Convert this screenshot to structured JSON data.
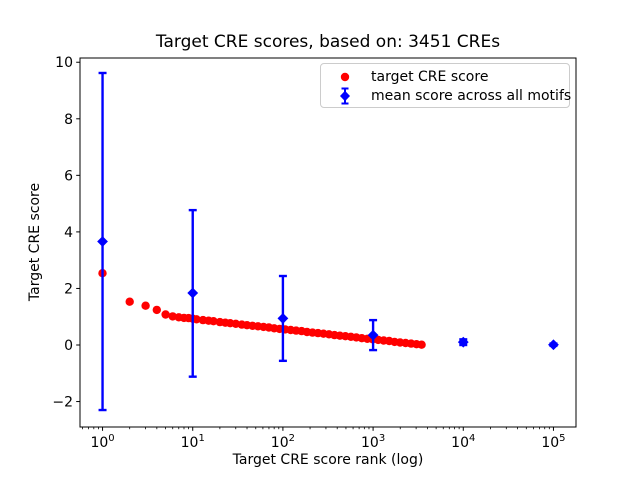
{
  "chart_data": {
    "type": "scatter",
    "title": "Target CRE scores, based on: 3451 CREs",
    "xlabel": "Target CRE score rank (log)",
    "ylabel": "Target CRE score",
    "x_scale": "log",
    "xlim_log10": [
      -0.25,
      5.25
    ],
    "ylim": [
      -2.9,
      10.15
    ],
    "grid": false,
    "background_color": "#ffffff",
    "axis_color": "#000000",
    "x_major_ticks": [
      {
        "value": 1,
        "base": "10",
        "exp": "0"
      },
      {
        "value": 10,
        "base": "10",
        "exp": "1"
      },
      {
        "value": 100,
        "base": "10",
        "exp": "2"
      },
      {
        "value": 1000,
        "base": "10",
        "exp": "3"
      },
      {
        "value": 10000,
        "base": "10",
        "exp": "4"
      },
      {
        "value": 100000,
        "base": "10",
        "exp": "5"
      }
    ],
    "x_minor_ticks": [
      0.6,
      0.7,
      0.8,
      0.9,
      2,
      3,
      4,
      5,
      6,
      7,
      8,
      9,
      20,
      30,
      40,
      50,
      60,
      70,
      80,
      90,
      200,
      300,
      400,
      500,
      600,
      700,
      800,
      900,
      2000,
      3000,
      4000,
      5000,
      6000,
      7000,
      8000,
      9000,
      20000,
      30000,
      40000,
      50000,
      60000,
      70000,
      80000,
      90000
    ],
    "y_ticks": [
      {
        "value": -2,
        "label": "−2"
      },
      {
        "value": 0,
        "label": "0"
      },
      {
        "value": 2,
        "label": "2"
      },
      {
        "value": 4,
        "label": "4"
      },
      {
        "value": 6,
        "label": "6"
      },
      {
        "value": 8,
        "label": "8"
      },
      {
        "value": 10,
        "label": "10"
      }
    ],
    "legend": {
      "position": "upper right",
      "border_color": "#cccccc",
      "entries": [
        {
          "label": "target CRE score",
          "marker": "circle",
          "color": "#ff0000"
        },
        {
          "label": "mean score across all motifs",
          "marker": "diamond-errorbar",
          "color": "#0000ff"
        }
      ]
    },
    "series": [
      {
        "name": "target CRE score",
        "marker": "circle",
        "color": "#ff0000",
        "points": [
          [
            1,
            2.54
          ],
          [
            2,
            1.53
          ],
          [
            3,
            1.39
          ],
          [
            4,
            1.24
          ],
          [
            5,
            1.08
          ],
          [
            6,
            1.01
          ],
          [
            7,
            0.98
          ],
          [
            8,
            0.96
          ],
          [
            9,
            0.95
          ],
          [
            10,
            0.93
          ],
          [
            11,
            0.91
          ],
          [
            13,
            0.88
          ],
          [
            15,
            0.86
          ],
          [
            17,
            0.84
          ],
          [
            20,
            0.81
          ],
          [
            23,
            0.79
          ],
          [
            26,
            0.77
          ],
          [
            30,
            0.75
          ],
          [
            35,
            0.72
          ],
          [
            40,
            0.7
          ],
          [
            46,
            0.68
          ],
          [
            53,
            0.66
          ],
          [
            61,
            0.64
          ],
          [
            70,
            0.62
          ],
          [
            80,
            0.59
          ],
          [
            92,
            0.57
          ],
          [
            106,
            0.55
          ],
          [
            122,
            0.53
          ],
          [
            140,
            0.51
          ],
          [
            161,
            0.49
          ],
          [
            185,
            0.46
          ],
          [
            213,
            0.44
          ],
          [
            245,
            0.42
          ],
          [
            282,
            0.4
          ],
          [
            324,
            0.38
          ],
          [
            373,
            0.35
          ],
          [
            429,
            0.33
          ],
          [
            493,
            0.31
          ],
          [
            567,
            0.29
          ],
          [
            652,
            0.27
          ],
          [
            750,
            0.24
          ],
          [
            862,
            0.22
          ],
          [
            991,
            0.2
          ],
          [
            1140,
            0.18
          ],
          [
            1311,
            0.16
          ],
          [
            1508,
            0.14
          ],
          [
            1734,
            0.11
          ],
          [
            1994,
            0.09
          ],
          [
            2293,
            0.07
          ],
          [
            2637,
            0.05
          ],
          [
            3033,
            0.03
          ],
          [
            3451,
            0.01
          ]
        ]
      },
      {
        "name": "mean score across all motifs",
        "marker": "diamond",
        "color": "#0000ff",
        "points": [
          {
            "x": 1,
            "y": 3.66,
            "lo": -2.3,
            "hi": 9.62
          },
          {
            "x": 10,
            "y": 1.84,
            "lo": -1.12,
            "hi": 4.77
          },
          {
            "x": 100,
            "y": 0.94,
            "lo": -0.56,
            "hi": 2.44
          },
          {
            "x": 1000,
            "y": 0.35,
            "lo": -0.18,
            "hi": 0.88
          },
          {
            "x": 10000,
            "y": 0.1,
            "lo": 0.0,
            "hi": 0.2
          },
          {
            "x": 100000,
            "y": 0.01,
            "lo": -0.03,
            "hi": 0.05
          }
        ]
      }
    ]
  }
}
